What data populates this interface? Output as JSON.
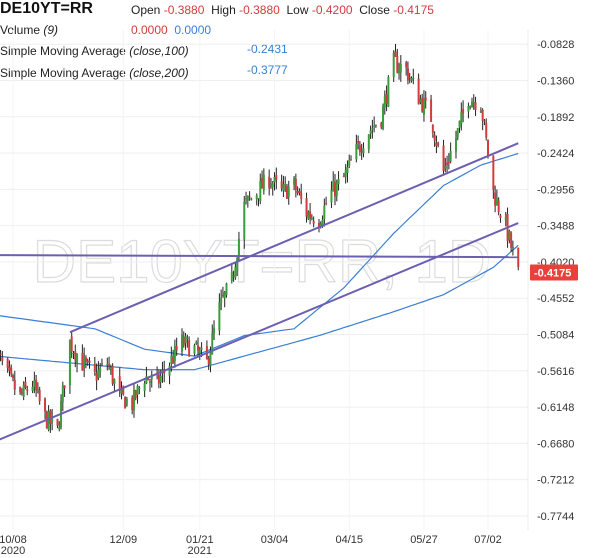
{
  "header": {
    "symbol": "DE10YT=RR",
    "open_label": "Open",
    "open_value": "-0.3880",
    "high_label": "High",
    "high_value": "-0.3880",
    "low_label": "Low",
    "low_value": "-0.4200",
    "close_label": "Close",
    "close_value": "-0.4175",
    "volume_label": "Volume",
    "volume_period": "(9)",
    "volume_value_1": "0.0000",
    "volume_value_2": "0.0000",
    "sma100_label": "Simple Moving Average",
    "sma100_params": "(close,100)",
    "sma100_value": "-0.2431",
    "sma200_label": "Simple Moving Average",
    "sma200_params": "(close,200)",
    "sma200_value": "-0.3777"
  },
  "watermark": "DE10YT=RR, 1D",
  "chart_data": {
    "type": "candlestick",
    "y_ticks": [
      "-0.0828",
      "-0.1360",
      "-0.1892",
      "-0.2424",
      "-0.2956",
      "-0.3488",
      "-0.4020",
      "-0.4552",
      "-0.5084",
      "-0.5616",
      "-0.6148",
      "-0.6680",
      "-0.7212",
      "-0.7744"
    ],
    "ylim": [
      -0.795,
      -0.062
    ],
    "x_ticks": [
      {
        "label": "10/08",
        "sublabel": "2020",
        "date": "2020-10-08"
      },
      {
        "label": "12/09",
        "sublabel": "",
        "date": "2020-12-09"
      },
      {
        "label": "01/21",
        "sublabel": "2021",
        "date": "2021-01-21"
      },
      {
        "label": "03/04",
        "sublabel": "",
        "date": "2021-03-04"
      },
      {
        "label": "04/15",
        "sublabel": "",
        "date": "2021-04-15"
      },
      {
        "label": "05/27",
        "sublabel": "",
        "date": "2021-05-27"
      },
      {
        "label": "07/02",
        "sublabel": "",
        "date": "2021-07-02"
      }
    ],
    "last_price": "-0.4175",
    "up_color": "#3a9c3a",
    "down_color": "#d23c3c",
    "sma_color": "#3a7fd5",
    "trendline_color": "#6a5fb0",
    "price_path": [
      [
        "2020-09-28",
        -0.53
      ],
      [
        "2020-10-05",
        -0.57
      ],
      [
        "2020-10-12",
        -0.6
      ],
      [
        "2020-10-19",
        -0.58
      ],
      [
        "2020-10-26",
        -0.63
      ],
      [
        "2020-11-02",
        -0.65
      ],
      [
        "2020-11-09",
        -0.52
      ],
      [
        "2020-11-16",
        -0.55
      ],
      [
        "2020-11-23",
        -0.57
      ],
      [
        "2020-11-30",
        -0.55
      ],
      [
        "2020-12-07",
        -0.6
      ],
      [
        "2020-12-14",
        -0.61
      ],
      [
        "2020-12-21",
        -0.57
      ],
      [
        "2020-12-28",
        -0.58
      ],
      [
        "2021-01-04",
        -0.55
      ],
      [
        "2021-01-11",
        -0.52
      ],
      [
        "2021-01-18",
        -0.53
      ],
      [
        "2021-01-25",
        -0.55
      ],
      [
        "2021-02-01",
        -0.47
      ],
      [
        "2021-02-08",
        -0.43
      ],
      [
        "2021-02-15",
        -0.32
      ],
      [
        "2021-02-22",
        -0.3
      ],
      [
        "2021-03-01",
        -0.28
      ],
      [
        "2021-03-08",
        -0.3
      ],
      [
        "2021-03-15",
        -0.29
      ],
      [
        "2021-03-22",
        -0.33
      ],
      [
        "2021-03-29",
        -0.34
      ],
      [
        "2021-04-05",
        -0.3
      ],
      [
        "2021-04-12",
        -0.28
      ],
      [
        "2021-04-19",
        -0.24
      ],
      [
        "2021-04-26",
        -0.21
      ],
      [
        "2021-05-03",
        -0.19
      ],
      [
        "2021-05-10",
        -0.11
      ],
      [
        "2021-05-17",
        -0.12
      ],
      [
        "2021-05-24",
        -0.16
      ],
      [
        "2021-05-31",
        -0.19
      ],
      [
        "2021-06-07",
        -0.27
      ],
      [
        "2021-06-14",
        -0.22
      ],
      [
        "2021-06-21",
        -0.16
      ],
      [
        "2021-06-28",
        -0.17
      ],
      [
        "2021-07-05",
        -0.3
      ],
      [
        "2021-07-12",
        -0.35
      ],
      [
        "2021-07-19",
        -0.42
      ]
    ],
    "sma100": [
      [
        "2020-09-28",
        -0.48
      ],
      [
        "2020-10-26",
        -0.49
      ],
      [
        "2020-11-23",
        -0.5
      ],
      [
        "2020-12-21",
        -0.53
      ],
      [
        "2021-01-18",
        -0.54
      ],
      [
        "2021-02-15",
        -0.51
      ],
      [
        "2021-03-15",
        -0.5
      ],
      [
        "2021-04-12",
        -0.44
      ],
      [
        "2021-05-10",
        -0.36
      ],
      [
        "2021-06-07",
        -0.29
      ],
      [
        "2021-06-28",
        -0.26
      ],
      [
        "2021-07-19",
        -0.243
      ]
    ],
    "sma200": [
      [
        "2020-09-28",
        -0.54
      ],
      [
        "2020-11-09",
        -0.55
      ],
      [
        "2020-12-21",
        -0.56
      ],
      [
        "2021-01-18",
        -0.56
      ],
      [
        "2021-02-15",
        -0.54
      ],
      [
        "2021-03-29",
        -0.51
      ],
      [
        "2021-05-10",
        -0.475
      ],
      [
        "2021-06-07",
        -0.45
      ],
      [
        "2021-07-05",
        -0.41
      ],
      [
        "2021-07-19",
        -0.3777
      ]
    ],
    "trendlines": [
      {
        "from": [
          "2020-09-28",
          -0.665
        ],
        "to": [
          "2021-07-19",
          -0.345
        ]
      },
      {
        "from": [
          "2020-11-09",
          -0.505
        ],
        "to": [
          "2021-07-19",
          -0.228
        ]
      },
      {
        "from": [
          "2020-09-28",
          -0.392
        ],
        "to": [
          "2021-07-19",
          -0.395
        ]
      }
    ]
  }
}
